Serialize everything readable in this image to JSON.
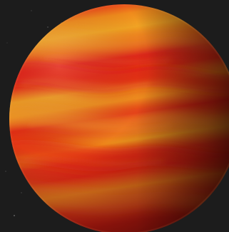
{
  "scene": {
    "subject": "planet-icon",
    "background_color": "#1c1c1c",
    "star_color": "#cfcfcf",
    "planet_colors": {
      "red": "#e02416",
      "orange": "#ef7a14",
      "yellow": "#f0a020",
      "shadow": "#2a0202"
    }
  }
}
